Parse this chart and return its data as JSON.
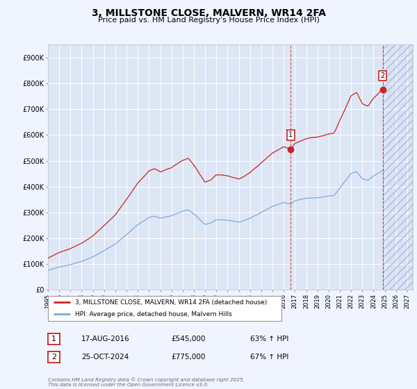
{
  "title": "3, MILLSTONE CLOSE, MALVERN, WR14 2FA",
  "subtitle": "Price paid vs. HM Land Registry's House Price Index (HPI)",
  "background_color": "#f0f4ff",
  "plot_bg_color": "#dde6f5",
  "grid_color": "#ffffff",
  "ylim": [
    0,
    950000
  ],
  "xlim_start": 1995.0,
  "xlim_end": 2027.5,
  "yticks": [
    0,
    100000,
    200000,
    300000,
    400000,
    500000,
    600000,
    700000,
    800000,
    900000
  ],
  "ytick_labels": [
    "£0",
    "£100K",
    "£200K",
    "£300K",
    "£400K",
    "£500K",
    "£600K",
    "£700K",
    "£800K",
    "£900K"
  ],
  "xticks": [
    1995,
    1996,
    1997,
    1998,
    1999,
    2000,
    2001,
    2002,
    2003,
    2004,
    2005,
    2006,
    2007,
    2008,
    2009,
    2010,
    2011,
    2012,
    2013,
    2014,
    2015,
    2016,
    2017,
    2018,
    2019,
    2020,
    2021,
    2022,
    2023,
    2024,
    2025,
    2026,
    2027
  ],
  "hpi_color": "#7aaadd",
  "price_color": "#cc2222",
  "marker1_x": 2016.63,
  "marker1_y": 545000,
  "marker2_x": 2024.82,
  "marker2_y": 775000,
  "vline1_x": 2016.63,
  "vline2_x": 2024.82,
  "legend_line1": "3, MILLSTONE CLOSE, MALVERN, WR14 2FA (detached house)",
  "legend_line2": "HPI: Average price, detached house, Malvern Hills",
  "annotation1_num": "1",
  "annotation1_date": "17-AUG-2016",
  "annotation1_price": "£545,000",
  "annotation1_hpi": "63% ↑ HPI",
  "annotation2_num": "2",
  "annotation2_date": "25-OCT-2024",
  "annotation2_price": "£775,000",
  "annotation2_hpi": "67% ↑ HPI",
  "footer": "Contains HM Land Registry data © Crown copyright and database right 2025.\nThis data is licensed under the Open Government Licence v3.0."
}
